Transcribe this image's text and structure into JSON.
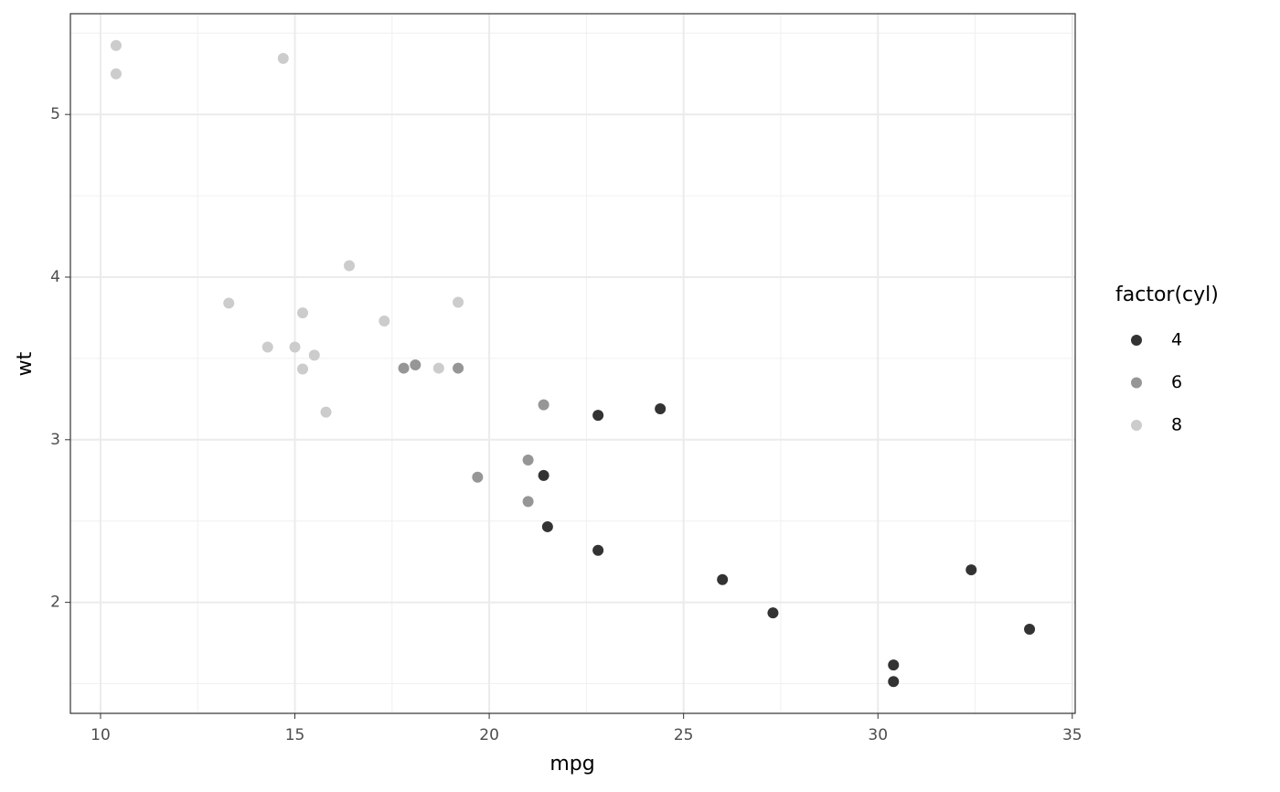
{
  "chart_data": {
    "type": "scatter",
    "x_label": "mpg",
    "y_label": "wt",
    "legend_title": "factor(cyl)",
    "series": [
      {
        "name": "4",
        "color": "#333333",
        "x": [
          22.8,
          24.4,
          22.8,
          32.4,
          30.4,
          33.9,
          21.5,
          27.3,
          26.0,
          30.4,
          21.4
        ],
        "values": [
          2.32,
          3.19,
          3.15,
          2.2,
          1.615,
          1.835,
          2.465,
          1.935,
          2.14,
          1.513,
          2.78
        ]
      },
      {
        "name": "6",
        "color": "#969696",
        "x": [
          21.0,
          21.0,
          21.4,
          18.1,
          19.2,
          17.8,
          19.7
        ],
        "values": [
          2.62,
          2.875,
          3.215,
          3.46,
          3.44,
          3.44,
          2.77
        ]
      },
      {
        "name": "8",
        "color": "#cccccc",
        "x": [
          18.7,
          14.3,
          16.4,
          17.3,
          15.2,
          10.4,
          10.4,
          14.7,
          15.5,
          15.2,
          13.3,
          19.2,
          15.8,
          15.0
        ],
        "values": [
          3.44,
          3.57,
          4.07,
          3.73,
          3.78,
          5.25,
          5.424,
          5.345,
          3.52,
          3.435,
          3.84,
          3.845,
          3.17,
          3.57
        ]
      }
    ],
    "xlim": [
      9.225,
      35.075
    ],
    "ylim": [
      1.31745,
      5.61955
    ],
    "xticks": [
      10,
      15,
      20,
      25,
      30,
      35
    ],
    "yticks": [
      2,
      3,
      4,
      5
    ],
    "x_minor_grid": [
      12.5,
      17.5,
      22.5,
      27.5,
      32.5
    ],
    "y_minor_grid": [
      1.5,
      2.5,
      3.5,
      4.5,
      5.5
    ],
    "grid": true,
    "legend_position": "right"
  }
}
